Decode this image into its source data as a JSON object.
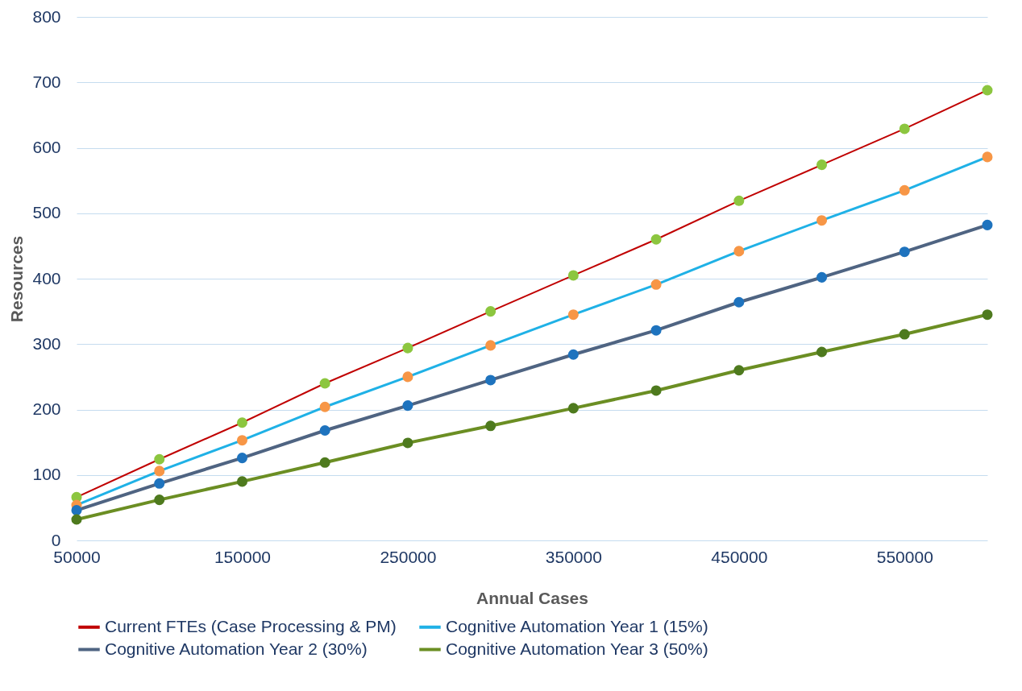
{
  "chart_data": {
    "type": "line",
    "xlabel": "Annual Cases",
    "ylabel": "Resources",
    "x": [
      50000,
      100000,
      150000,
      200000,
      250000,
      300000,
      350000,
      400000,
      450000,
      500000,
      550000,
      600000
    ],
    "series": [
      {
        "name": "Current FTEs (Case Processing & PM)",
        "color": "#c00000",
        "colors": [
          "#8cc63f",
          "#8cc63f",
          "#8cc63f",
          "#8cc63f",
          "#8cc63f",
          "#8cc63f",
          "#8cc63f",
          "#8cc63f",
          "#8cc63f",
          "#8cc63f",
          "#8cc63f",
          "#8cc63f"
        ],
        "values": [
          66,
          124,
          180,
          240,
          294,
          350,
          405,
          460,
          519,
          574,
          629,
          688
        ]
      },
      {
        "name": "Cognitive Automation Year 1 (15%)",
        "color": "#1fb1e6",
        "colors": [
          "#f79646",
          "#f79646",
          "#f79646",
          "#f79646",
          "#f79646",
          "#f79646",
          "#f79646",
          "#f79646",
          "#f79646",
          "#f79646",
          "#f79646",
          "#f79646"
        ],
        "values": [
          54,
          106,
          153,
          204,
          250,
          298,
          345,
          391,
          442,
          489,
          535,
          586
        ]
      },
      {
        "name": "Cognitive Automation Year 2 (30%)",
        "color": "#4f6482",
        "colors": [
          "#1e73be",
          "#1e73be",
          "#1e73be",
          "#1e73be",
          "#1e73be",
          "#1e73be",
          "#1e73be",
          "#1e73be",
          "#1e73be",
          "#1e73be",
          "#1e73be",
          "#1e73be"
        ],
        "values": [
          46,
          87,
          126,
          168,
          206,
          245,
          284,
          321,
          364,
          402,
          441,
          482
        ]
      },
      {
        "name": "Cognitive Automation Year 3 (50%)",
        "color": "#6b8e23",
        "colors": [
          "#4e7a1e",
          "#4e7a1e",
          "#4e7a1e",
          "#4e7a1e",
          "#4e7a1e",
          "#4e7a1e",
          "#4e7a1e",
          "#4e7a1e",
          "#4e7a1e",
          "#4e7a1e",
          "#4e7a1e",
          "#4e7a1e"
        ],
        "values": [
          32,
          62,
          90,
          119,
          149,
          175,
          202,
          229,
          260,
          288,
          315,
          345
        ]
      }
    ],
    "xlim": [
      50000,
      600000
    ],
    "xticks": [
      50000,
      150000,
      250000,
      350000,
      450000,
      550000
    ],
    "ylim": [
      0,
      800
    ],
    "yticks": [
      0,
      100,
      200,
      300,
      400,
      500,
      600,
      700,
      800
    ],
    "grid": "y",
    "legend": "bottom",
    "marker": "circle",
    "line_style": "solid"
  }
}
